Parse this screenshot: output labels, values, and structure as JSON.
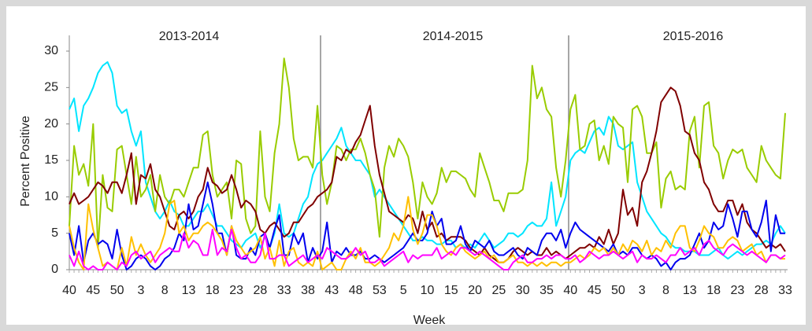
{
  "chart_data": {
    "type": "line",
    "ylabel": "Percent Positive",
    "xlabel": "Week",
    "annotations": [
      "2013-2014",
      "2014-2015",
      "2015-2016"
    ],
    "ylim": [
      0,
      30
    ],
    "yticks": [
      0,
      5,
      10,
      15,
      20,
      25,
      30
    ],
    "categories": [
      "40",
      null,
      null,
      null,
      null,
      "45",
      null,
      null,
      null,
      null,
      "50",
      null,
      null,
      null,
      null,
      "3",
      null,
      null,
      null,
      null,
      "8",
      null,
      null,
      null,
      null,
      "13",
      null,
      null,
      null,
      null,
      "18",
      null,
      null,
      null,
      null,
      "23",
      null,
      null,
      null,
      null,
      "28",
      null,
      null,
      null,
      null,
      "33",
      null,
      null,
      null,
      null,
      "38",
      null,
      null,
      null,
      null,
      "43",
      null,
      null,
      null,
      null,
      "48",
      null,
      null,
      null,
      null,
      "53",
      null,
      null,
      null,
      null,
      "5",
      null,
      null,
      null,
      null,
      "10",
      null,
      null,
      null,
      null,
      "15",
      null,
      null,
      null,
      null,
      "20",
      null,
      null,
      null,
      null,
      "25",
      null,
      null,
      null,
      null,
      "30",
      null,
      null,
      null,
      null,
      "35",
      null,
      null,
      null,
      null,
      "40",
      null,
      null,
      null,
      null,
      "45",
      null,
      null,
      null,
      null,
      "50",
      null,
      null,
      null,
      null,
      "3",
      null,
      null,
      null,
      null,
      "8",
      null,
      null,
      null,
      null,
      "13",
      null,
      null,
      null,
      null,
      "18",
      null,
      null,
      null,
      null,
      "23",
      null,
      null,
      null,
      null,
      "28",
      null,
      null,
      null,
      null,
      "33"
    ],
    "series": [
      {
        "color": "#00e5ff",
        "values": [
          22,
          23.5,
          19,
          22.5,
          23.5,
          25,
          27,
          28,
          28.5,
          27,
          22.5,
          21.5,
          22,
          19,
          17,
          19,
          12,
          10,
          8,
          7,
          8,
          9.5,
          8,
          7.5,
          6,
          6,
          7,
          8,
          8,
          9,
          7.5,
          6,
          6,
          5,
          4,
          3.5,
          3,
          4,
          4.5,
          5,
          3,
          4.5,
          3,
          5,
          9,
          5,
          4.5,
          5,
          7,
          9,
          10,
          13,
          14.5,
          15,
          16,
          17,
          18,
          19.5,
          17,
          16,
          15,
          15,
          14,
          13,
          10,
          11,
          10,
          9,
          8,
          7,
          6,
          5,
          4,
          4,
          4.5,
          4,
          4,
          3.5,
          3.5,
          4,
          4,
          3,
          3.5,
          3,
          3.5,
          3,
          4,
          5,
          4,
          3,
          3.5,
          4,
          5,
          5,
          4.5,
          5,
          6,
          6.5,
          6,
          6,
          7,
          12,
          6,
          8,
          10,
          15,
          16,
          16.5,
          16,
          17.5,
          19,
          19.5,
          18.5,
          21,
          20,
          17,
          16.5,
          17,
          17.5,
          12,
          10,
          8,
          7,
          6,
          5,
          4.5,
          3.5,
          3,
          3,
          2.5,
          2.5,
          2.5,
          2,
          2,
          2,
          2.5,
          3,
          2,
          1.5,
          2,
          2.5,
          2,
          2.5,
          3,
          3.5,
          3.5,
          4,
          3.5,
          5,
          6,
          5
        ]
      },
      {
        "color": "#99cc00",
        "values": [
          6,
          17,
          13,
          14.5,
          11.5,
          20,
          3,
          13,
          8.5,
          8,
          16.5,
          17,
          13,
          9,
          15.5,
          10,
          11,
          13,
          8,
          13,
          10,
          9,
          11,
          11,
          10,
          12,
          14,
          14,
          18.5,
          19,
          13,
          10,
          11,
          12,
          7,
          15,
          14.5,
          7,
          5,
          6,
          19,
          10,
          8,
          16,
          20,
          29,
          25,
          18,
          15,
          15.5,
          15.5,
          14,
          22.5,
          13,
          9,
          12,
          17,
          16.5,
          15,
          16.5,
          16.5,
          18,
          16,
          13,
          11,
          4.5,
          14,
          17,
          15.5,
          18,
          17,
          15.5,
          12,
          7,
          12,
          10,
          9,
          10.5,
          14,
          12,
          13.5,
          13.5,
          13,
          12.5,
          11,
          10,
          16,
          14,
          12,
          9.5,
          9.5,
          8,
          10.5,
          10.5,
          10.5,
          11,
          15,
          28,
          23.5,
          25,
          22,
          21,
          14,
          10,
          15,
          22,
          24,
          16.5,
          17,
          20,
          20.5,
          15,
          17,
          14.5,
          21,
          20,
          19.5,
          12,
          22,
          22.5,
          21,
          16,
          16,
          17.5,
          8.5,
          12.5,
          13.5,
          11,
          11.5,
          11,
          19,
          21,
          14,
          22.5,
          23,
          17,
          16,
          12.5,
          15,
          16.5,
          16,
          16.5,
          14,
          13,
          12,
          17,
          15,
          14,
          13,
          12.5,
          21.5
        ]
      },
      {
        "color": "#800000",
        "values": [
          9,
          10.5,
          9,
          9.5,
          10,
          11,
          12,
          11.5,
          10.5,
          12,
          12,
          10.5,
          13,
          16,
          9,
          13,
          12.5,
          14.5,
          11,
          10,
          8,
          6,
          5.5,
          7.5,
          8,
          7,
          8,
          10,
          11,
          14,
          12,
          11.5,
          10.5,
          11,
          13,
          11,
          8.5,
          9.5,
          9,
          8,
          5.5,
          5,
          6,
          6.5,
          5.5,
          4.5,
          5,
          6.5,
          6.5,
          7.5,
          8.5,
          9,
          10,
          10.5,
          11,
          12,
          15.5,
          15,
          16.5,
          16,
          17.5,
          18.5,
          20.5,
          22.5,
          17,
          13,
          10.5,
          8,
          7.5,
          7,
          6.5,
          7.5,
          7,
          5,
          8,
          5.5,
          6.5,
          4.5,
          5,
          4,
          4.5,
          4.5,
          4.5,
          4,
          3,
          2.5,
          2,
          3,
          2,
          1.5,
          1,
          1,
          1.5,
          2.5,
          3,
          2.5,
          2,
          2.5,
          2,
          2,
          3,
          2,
          2.5,
          2,
          1.5,
          2,
          2.5,
          3,
          3,
          3.5,
          3,
          4.5,
          3.5,
          5.5,
          3.5,
          5,
          11,
          7.5,
          8.5,
          6,
          12,
          13.5,
          16,
          19,
          23,
          24,
          25,
          24.5,
          22.5,
          19,
          18.5,
          16,
          15,
          12,
          11,
          9,
          8,
          8,
          9.5,
          9.5,
          7.5,
          9,
          6.5,
          5.5,
          5,
          4,
          3,
          3.5,
          3,
          3.5,
          2.5
        ]
      },
      {
        "color": "#0000ee",
        "values": [
          5,
          2,
          6,
          1,
          4,
          5,
          3.5,
          4,
          3.5,
          1.5,
          5.5,
          2,
          0,
          0.5,
          1.5,
          2,
          1.5,
          0.5,
          0,
          0.5,
          1.5,
          2,
          3,
          5,
          4,
          9,
          5.5,
          6,
          9,
          12,
          9,
          5,
          5,
          2,
          6,
          2,
          1.5,
          1.5,
          3,
          2,
          4.5,
          5,
          3,
          5.5,
          7.5,
          2,
          2,
          5,
          3.5,
          5,
          1,
          3,
          1.5,
          2.5,
          6.5,
          1,
          2.5,
          2,
          3,
          2,
          2,
          2.5,
          1.5,
          1.5,
          2,
          1.5,
          1,
          1.5,
          2,
          2.5,
          3,
          4,
          5,
          4,
          4,
          5,
          8,
          6,
          7,
          3.5,
          3.5,
          4,
          6,
          3.5,
          2.5,
          4,
          3.5,
          3,
          4,
          2.5,
          2,
          2,
          2.5,
          3,
          2,
          1.5,
          3,
          2.5,
          2,
          4,
          5,
          5,
          4,
          5.5,
          3,
          5,
          6.5,
          5.5,
          5,
          4.5,
          4,
          3.5,
          3,
          2.5,
          3.5,
          2,
          2.5,
          2,
          3,
          3,
          2,
          1.5,
          2,
          1.5,
          0.5,
          1,
          0,
          1,
          1.5,
          1.5,
          2,
          3.5,
          5,
          3,
          4,
          6.5,
          5.5,
          6,
          9,
          7,
          4.5,
          8,
          8,
          5.5,
          4.5,
          6.5,
          9.5,
          2.5,
          7.5,
          5,
          5
        ]
      },
      {
        "color": "#ffc000",
        "values": [
          6,
          3,
          1,
          0,
          9,
          5.5,
          3,
          0.5,
          1,
          0.5,
          0,
          3,
          0.5,
          4.5,
          2,
          3.5,
          2,
          1,
          2,
          3,
          5,
          9,
          9.5,
          5,
          6,
          4,
          5,
          5,
          6,
          6.5,
          6,
          5,
          4,
          2,
          6,
          4,
          3,
          2,
          2.5,
          3,
          4.5,
          1.5,
          3,
          0.5,
          4,
          0.5,
          2.5,
          3,
          1,
          0.5,
          1,
          0.5,
          2.5,
          0,
          0.5,
          1,
          0,
          0,
          1.5,
          2.5,
          1.5,
          3,
          1,
          1,
          0.5,
          1,
          2,
          3,
          5,
          4,
          6,
          10,
          5.5,
          3.5,
          5,
          7.5,
          7.5,
          6,
          3.5,
          2.5,
          2,
          3,
          3.5,
          2.5,
          2,
          1.5,
          2,
          2.5,
          1.5,
          2,
          1,
          1,
          1.5,
          2,
          1,
          1,
          0.5,
          1,
          0.5,
          1,
          0.5,
          1,
          1,
          0.5,
          1,
          1,
          1.5,
          2,
          1.5,
          2,
          3,
          2.5,
          3,
          2,
          3,
          2,
          3.5,
          2.5,
          4,
          3.5,
          2.5,
          4,
          2,
          3,
          2.5,
          4,
          3,
          5,
          6,
          6,
          3,
          2.5,
          4,
          6,
          5,
          4.5,
          3,
          3,
          4,
          4.5,
          4,
          2.5,
          3,
          3.5,
          2,
          2.5,
          1,
          2,
          2,
          1.5,
          1.5
        ]
      },
      {
        "color": "#ff00ff",
        "values": [
          2,
          0.5,
          2.5,
          0.5,
          0,
          0.5,
          0,
          0,
          1,
          0.5,
          0,
          1,
          0.5,
          2,
          2.5,
          1.5,
          2,
          2.5,
          1,
          2,
          2.5,
          3,
          2.5,
          2.5,
          5,
          3,
          4,
          3.5,
          2,
          2,
          5.5,
          2,
          3,
          2.5,
          5.5,
          3,
          1.5,
          2,
          1,
          1,
          2,
          5,
          1.5,
          1.5,
          2,
          2,
          0.5,
          1,
          1.5,
          2,
          1,
          1.5,
          2,
          1.5,
          3,
          2.5,
          2,
          1.5,
          1.5,
          2,
          3,
          2,
          2.5,
          1,
          1,
          1.5,
          0.5,
          1,
          1.5,
          2,
          2.5,
          1,
          2,
          1.5,
          2,
          2,
          2,
          3,
          1.5,
          2,
          2.5,
          2,
          3,
          3,
          2.5,
          2,
          2.5,
          2,
          1.5,
          1,
          0.5,
          0,
          0,
          1,
          1.5,
          2,
          1,
          1,
          1.5,
          1.5,
          2,
          1.5,
          2,
          2,
          1.5,
          1.5,
          2,
          1,
          1.5,
          2.5,
          2,
          1.5,
          2,
          2,
          2.5,
          2,
          1.5,
          2,
          2.5,
          1,
          2,
          1.5,
          1.5,
          2,
          1.5,
          1,
          2,
          2,
          3,
          2,
          2.5,
          3,
          2,
          3.5,
          4,
          3,
          2.5,
          2,
          3,
          3.5,
          3,
          2.5,
          2,
          2.5,
          2,
          1.5,
          1,
          2,
          2,
          1.5,
          2
        ]
      }
    ]
  }
}
